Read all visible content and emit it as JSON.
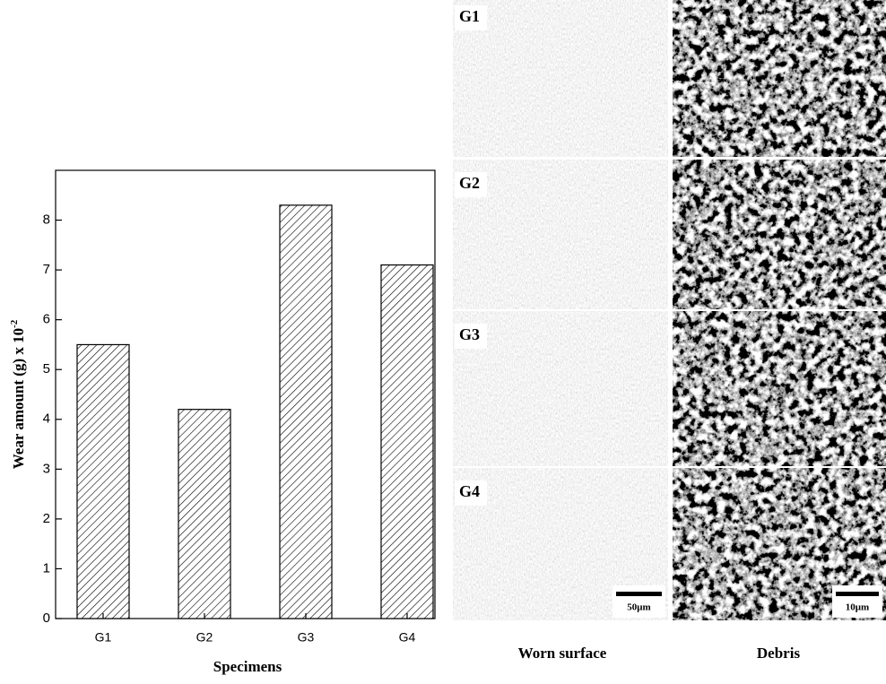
{
  "chart_data": {
    "type": "bar",
    "y_label": "Wear amount (g) x 10",
    "y_label_exponent": "-2",
    "x_label": "Specimens",
    "categories": [
      "G1",
      "G2",
      "G3",
      "G4"
    ],
    "values": [
      5.5,
      4.2,
      8.3,
      7.1
    ],
    "color": "#ffffff",
    "hatch": true,
    "ylim": [
      0,
      9
    ],
    "yticks": [
      0,
      1,
      2,
      3,
      4,
      5,
      6,
      7,
      8
    ]
  },
  "micrographs": {
    "rows": [
      "G1",
      "G2",
      "G3",
      "G4"
    ],
    "columns": [
      "Worn surface",
      "Debris"
    ],
    "scale_bars": [
      "50μm",
      "10μm"
    ]
  }
}
